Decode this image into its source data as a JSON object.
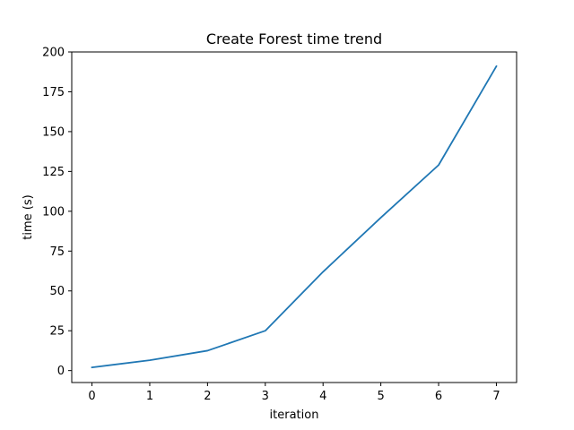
{
  "chart_data": {
    "type": "line",
    "title": "Create Forest time trend",
    "xlabel": "iteration",
    "ylabel": "time (s)",
    "xlim": [
      -0.35,
      7.35
    ],
    "ylim": [
      -7.5,
      200
    ],
    "x_ticks": [
      0,
      1,
      2,
      3,
      4,
      5,
      6,
      7
    ],
    "y_ticks": [
      0,
      25,
      50,
      75,
      100,
      125,
      150,
      175,
      200
    ],
    "grid": false,
    "series": [
      {
        "x": [
          0,
          1,
          2,
          3,
          4,
          5,
          6,
          7
        ],
        "values": [
          2,
          6.5,
          12.5,
          25,
          62,
          96,
          129,
          191
        ],
        "color": "#1f77b4"
      }
    ]
  }
}
